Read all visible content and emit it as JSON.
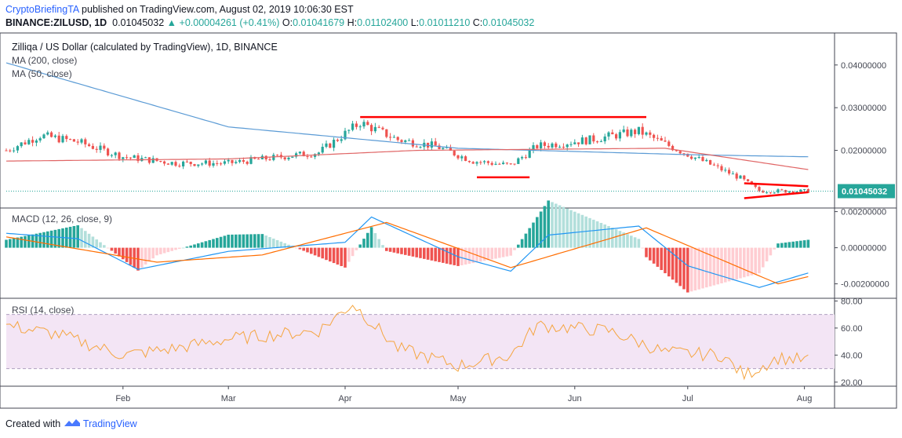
{
  "header": {
    "author": "CryptoBriefingTA",
    "published": "published on TradingView.com, August 02, 2019 10:06:30 EST",
    "symbol": "BINANCE:ZILUSD, 1D",
    "last": "0.01045032",
    "change": "+0.00004261 (+0.41%)",
    "open_label": "O:",
    "open": "0.01041679",
    "high_label": "H:",
    "high": "0.01102400",
    "low_label": "L:",
    "low": "0.01011210",
    "close_label": "C:",
    "close": "0.01045032"
  },
  "legend": {
    "title": "Zilliqa / US Dollar (calculated by TradingView), 1D, BINANCE",
    "ma200": "MA (200, close)",
    "ma50": "MA (50, close)",
    "macd": "MACD (12, 26, close, 9)",
    "rsi": "RSI (14, close)"
  },
  "price_axis": {
    "ticks": [
      "0.04000000",
      "0.03000000",
      "0.02000000"
    ],
    "current_label": "0.01045032"
  },
  "macd_axis": {
    "ticks": [
      "0.00200000",
      "0.00000000",
      "-0.00200000"
    ]
  },
  "rsi_axis": {
    "ticks": [
      "80.00",
      "60.00",
      "40.00",
      "20.00"
    ]
  },
  "time_axis": {
    "labels": [
      "Feb",
      "Mar",
      "Apr",
      "May",
      "Jun",
      "Jul",
      "Aug"
    ]
  },
  "footer": {
    "created_with": "Created with",
    "brand": "TradingView"
  },
  "colors": {
    "up": "#26a69a",
    "down": "#ef5350",
    "ma200": "#5b9bd5",
    "ma50": "#e06666",
    "macd": "#2196f3",
    "signal": "#ff6d00",
    "rsi": "#f5a540",
    "rsi_band": "#f3e5f5",
    "annotation": "#ff0000",
    "current": "#1e88e5"
  },
  "chart_data": [
    {
      "type": "candlestick",
      "title": "Zilliqa / US Dollar (calculated by TradingView), 1D, BINANCE",
      "x_range": [
        "2019-01-01",
        "2019-08-02"
      ],
      "ylim": [
        0.0065,
        0.0475
      ],
      "close_keypoints": [
        {
          "date": "2019-01-01",
          "close": 0.02
        },
        {
          "date": "2019-01-10",
          "close": 0.0235
        },
        {
          "date": "2019-01-20",
          "close": 0.022
        },
        {
          "date": "2019-02-01",
          "close": 0.0185
        },
        {
          "date": "2019-02-15",
          "close": 0.017
        },
        {
          "date": "2019-03-01",
          "close": 0.017
        },
        {
          "date": "2019-03-15",
          "close": 0.0185
        },
        {
          "date": "2019-03-25",
          "close": 0.0195
        },
        {
          "date": "2019-04-05",
          "close": 0.0265
        },
        {
          "date": "2019-04-15",
          "close": 0.0225
        },
        {
          "date": "2019-04-25",
          "close": 0.021
        },
        {
          "date": "2019-05-05",
          "close": 0.0175
        },
        {
          "date": "2019-05-15",
          "close": 0.0165
        },
        {
          "date": "2019-05-22",
          "close": 0.021
        },
        {
          "date": "2019-06-05",
          "close": 0.0225
        },
        {
          "date": "2019-06-18",
          "close": 0.0245
        },
        {
          "date": "2019-06-25",
          "close": 0.0215
        },
        {
          "date": "2019-07-05",
          "close": 0.0175
        },
        {
          "date": "2019-07-15",
          "close": 0.0135
        },
        {
          "date": "2019-07-20",
          "close": 0.0105
        },
        {
          "date": "2019-08-02",
          "close": 0.01045
        }
      ],
      "series": [
        {
          "name": "MA (200, close)",
          "values": [
            {
              "date": "2019-01-01",
              "value": 0.0405
            },
            {
              "date": "2019-03-01",
              "value": 0.0255
            },
            {
              "date": "2019-05-01",
              "value": 0.0205
            },
            {
              "date": "2019-07-01",
              "value": 0.019
            },
            {
              "date": "2019-08-02",
              "value": 0.0185
            }
          ]
        },
        {
          "name": "MA (50, close)",
          "values": [
            {
              "date": "2019-01-01",
              "value": 0.0175
            },
            {
              "date": "2019-03-01",
              "value": 0.018
            },
            {
              "date": "2019-04-20",
              "value": 0.02
            },
            {
              "date": "2019-06-25",
              "value": 0.0205
            },
            {
              "date": "2019-08-02",
              "value": 0.0155
            }
          ]
        }
      ],
      "annotations": [
        {
          "kind": "resistance",
          "from": "2019-04-05",
          "to": "2019-06-20",
          "value": 0.0278
        },
        {
          "kind": "support",
          "from": "2019-05-06",
          "to": "2019-05-20",
          "value": 0.0137
        },
        {
          "kind": "triangle",
          "from": "2019-07-16",
          "to": "2019-08-02",
          "top": [
            0.0123,
            0.0116
          ],
          "bottom": [
            0.0088,
            0.0102
          ]
        }
      ]
    },
    {
      "type": "line",
      "title": "MACD (12, 26, close, 9)",
      "ylim": [
        -0.0028,
        0.0022
      ],
      "macd": [
        {
          "date": "2019-01-01",
          "value": 0.0008
        },
        {
          "date": "2019-01-20",
          "value": 0.0005
        },
        {
          "date": "2019-02-05",
          "value": -0.0012
        },
        {
          "date": "2019-03-01",
          "value": -0.0002
        },
        {
          "date": "2019-04-01",
          "value": 0.0003
        },
        {
          "date": "2019-04-08",
          "value": 0.0017
        },
        {
          "date": "2019-05-01",
          "value": -0.0005
        },
        {
          "date": "2019-05-15",
          "value": -0.0013
        },
        {
          "date": "2019-05-25",
          "value": 0.0007
        },
        {
          "date": "2019-06-18",
          "value": 0.0012
        },
        {
          "date": "2019-07-01",
          "value": -0.001
        },
        {
          "date": "2019-07-20",
          "value": -0.0022
        },
        {
          "date": "2019-08-02",
          "value": -0.0014
        }
      ],
      "signal": [
        {
          "date": "2019-01-01",
          "value": 0.0006
        },
        {
          "date": "2019-02-10",
          "value": -0.0008
        },
        {
          "date": "2019-03-10",
          "value": -0.0004
        },
        {
          "date": "2019-04-12",
          "value": 0.0014
        },
        {
          "date": "2019-05-15",
          "value": -0.0011
        },
        {
          "date": "2019-06-20",
          "value": 0.0011
        },
        {
          "date": "2019-07-25",
          "value": -0.002
        },
        {
          "date": "2019-08-02",
          "value": -0.0016
        }
      ]
    },
    {
      "type": "line",
      "title": "RSI (14, close)",
      "ylim": [
        20,
        80
      ],
      "band": [
        30,
        70
      ],
      "values": [
        {
          "date": "2019-01-01",
          "value": 62
        },
        {
          "date": "2019-01-15",
          "value": 55
        },
        {
          "date": "2019-02-01",
          "value": 40
        },
        {
          "date": "2019-02-15",
          "value": 45
        },
        {
          "date": "2019-03-01",
          "value": 52
        },
        {
          "date": "2019-03-25",
          "value": 58
        },
        {
          "date": "2019-04-03",
          "value": 78
        },
        {
          "date": "2019-04-15",
          "value": 45
        },
        {
          "date": "2019-05-01",
          "value": 32
        },
        {
          "date": "2019-05-15",
          "value": 40
        },
        {
          "date": "2019-05-22",
          "value": 62
        },
        {
          "date": "2019-06-10",
          "value": 58
        },
        {
          "date": "2019-06-25",
          "value": 42
        },
        {
          "date": "2019-07-10",
          "value": 40
        },
        {
          "date": "2019-07-16",
          "value": 25
        },
        {
          "date": "2019-07-25",
          "value": 38
        },
        {
          "date": "2019-08-02",
          "value": 36
        }
      ]
    }
  ]
}
